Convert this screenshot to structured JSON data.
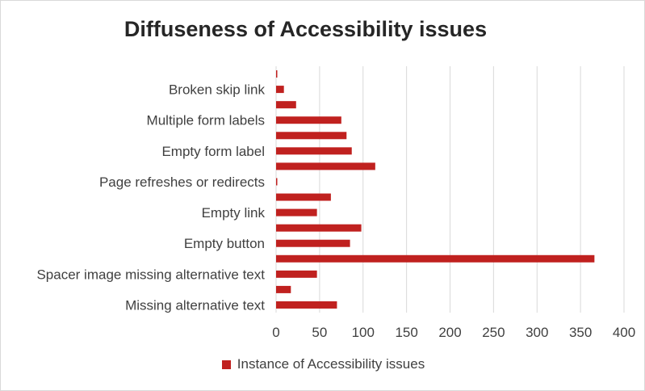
{
  "chart_data": {
    "type": "bar",
    "orientation": "horizontal",
    "title": "Diffuseness of Accessibility issues",
    "categories": [
      "Missing alternative text",
      "",
      "Spacer image missing alternative text",
      "",
      "Empty button",
      "",
      "Empty link",
      "",
      "Page refreshes or redirects",
      "",
      "Empty form label",
      "",
      "Multiple form labels",
      "",
      "Broken skip link",
      ""
    ],
    "series": [
      {
        "name": "Instance of Accessibility issues",
        "color": "#c0211f",
        "values": [
          70,
          17,
          47,
          366,
          85,
          98,
          47,
          63,
          1,
          114,
          87,
          81,
          75,
          23,
          9,
          1
        ]
      }
    ],
    "xlim": [
      0,
      400
    ],
    "xticks": [
      "0",
      "50",
      "100",
      "150",
      "200",
      "250",
      "300",
      "350",
      "400"
    ],
    "grid": true,
    "legend_position": "bottom"
  }
}
